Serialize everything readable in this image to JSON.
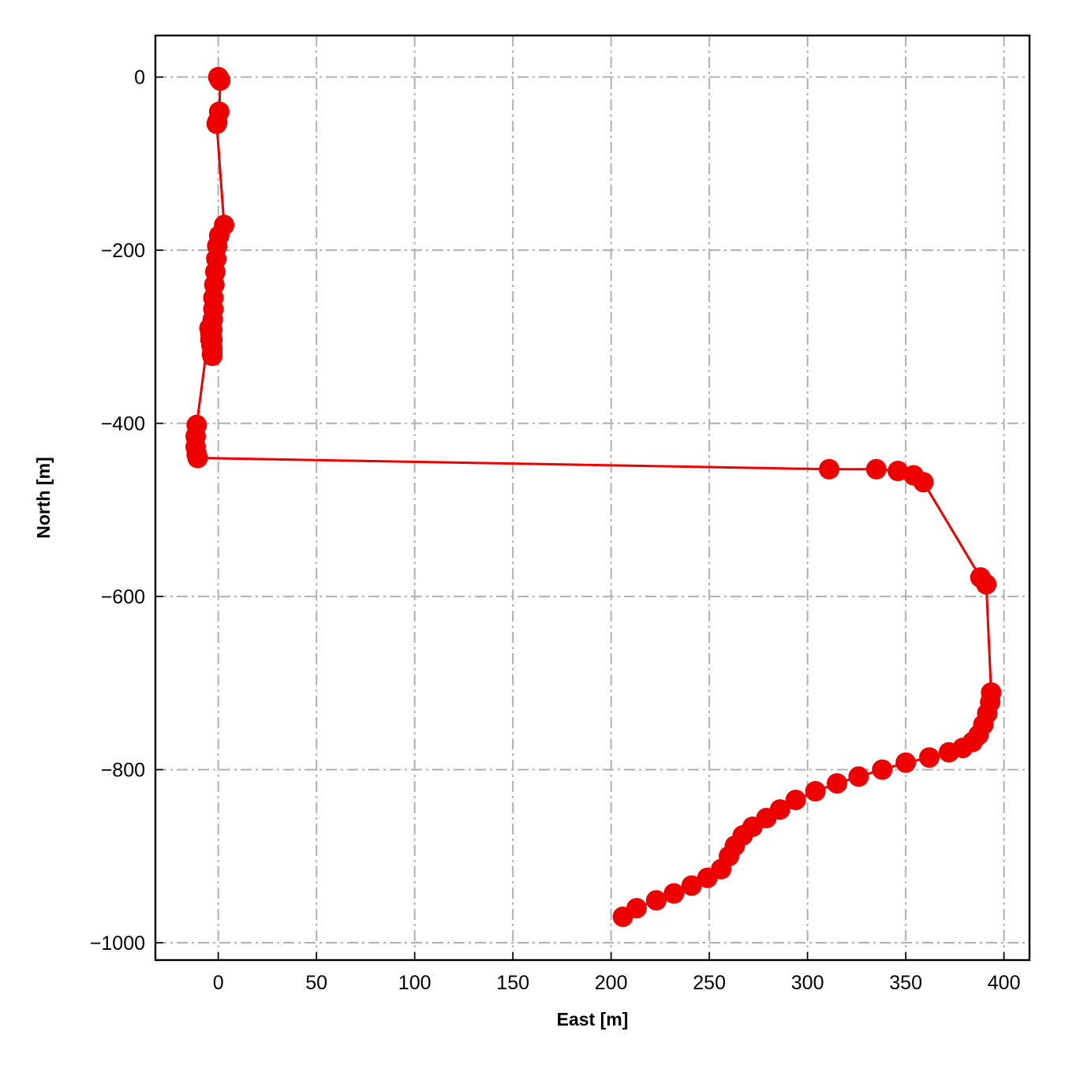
{
  "chart_data": {
    "type": "line",
    "title": "",
    "xlabel": "East [m]",
    "ylabel": "North [m]",
    "xlim": [
      -32,
      413
    ],
    "ylim": [
      -1020,
      48
    ],
    "xticks": [
      0,
      50,
      100,
      150,
      200,
      250,
      300,
      350,
      400
    ],
    "yticks": [
      0,
      -200,
      -400,
      -600,
      -800,
      -1000
    ],
    "xtick_labels": [
      "0",
      "50",
      "100",
      "150",
      "200",
      "250",
      "300",
      "350",
      "400"
    ],
    "ytick_labels": [
      "0",
      "−200",
      "−400",
      "−600",
      "−800",
      "−1000"
    ],
    "grid": true,
    "color": "#ee0000",
    "marker": "circle",
    "series": [
      {
        "x": [
          0,
          0.5,
          1,
          0.5,
          -0.5,
          -0.8,
          3,
          0.5,
          -0.5,
          -1,
          -1.5,
          -2,
          -2.5,
          -2.5,
          -2.8,
          -3,
          -3,
          -3,
          -3.2,
          -3,
          -3,
          -3.5,
          -4,
          -4,
          -4.5,
          -11,
          -11.5,
          -11.5,
          -11,
          -10.5,
          311,
          335,
          346,
          354,
          359,
          388,
          391,
          393.5,
          393,
          391.5,
          389.5,
          387,
          384,
          379,
          372,
          362,
          350,
          338,
          326,
          315,
          304,
          294,
          286,
          279,
          272,
          267,
          263,
          260,
          256,
          249,
          241,
          232,
          223,
          213,
          206
        ],
        "y": [
          0,
          -2,
          -4,
          -40,
          -52,
          -54,
          -171,
          -183,
          -195,
          -210,
          -225,
          -240,
          -255,
          -268,
          -280,
          -292,
          -303,
          -313,
          -320,
          -322,
          -318,
          -310,
          -303,
          -296,
          -290,
          -402,
          -415,
          -427,
          -436,
          -440,
          -453,
          -453,
          -455,
          -460,
          -468,
          -578,
          -586,
          -711,
          -722,
          -735,
          -748,
          -760,
          -768,
          -775,
          -780,
          -786,
          -792,
          -800,
          -808,
          -816,
          -825,
          -835,
          -846,
          -856,
          -866,
          -876,
          -888,
          -900,
          -915,
          -925,
          -934,
          -943,
          -951,
          -960,
          -970
        ]
      }
    ]
  }
}
